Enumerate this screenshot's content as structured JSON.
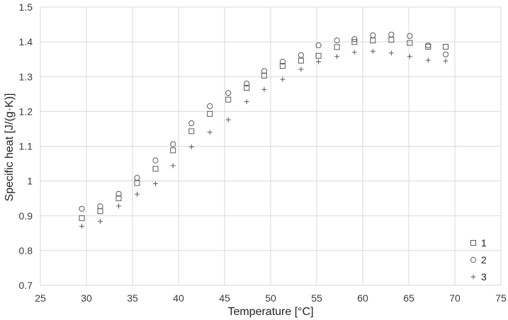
{
  "chart_data": {
    "type": "scatter",
    "title": "",
    "xlabel": "Temperature [°C]",
    "ylabel": "Specific heat [J/(g·K)]",
    "xlim": [
      25,
      75
    ],
    "ylim": [
      0.7,
      1.5
    ],
    "xticks": [
      "25",
      "30",
      "35",
      "40",
      "45",
      "50",
      "55",
      "60",
      "65",
      "70",
      "75"
    ],
    "yticks": [
      "0.7",
      "0.8",
      "0.9",
      "1",
      "1.1",
      "1.2",
      "1.3",
      "1.4",
      "1.5"
    ],
    "grid": true,
    "legend_position": "bottom-right",
    "series": [
      {
        "name": "1",
        "marker": "square",
        "x": [
          29.5,
          31.5,
          33.5,
          35.5,
          37.5,
          39.4,
          41.4,
          43.4,
          45.4,
          47.4,
          49.3,
          51.3,
          53.3,
          55.2,
          57.2,
          59.1,
          61.1,
          63.1,
          65.1,
          67.1,
          69.0
        ],
        "y": [
          0.893,
          0.913,
          0.95,
          0.994,
          1.035,
          1.088,
          1.143,
          1.193,
          1.234,
          1.268,
          1.303,
          1.331,
          1.346,
          1.36,
          1.385,
          1.4,
          1.404,
          1.406,
          1.397,
          1.386,
          1.386
        ]
      },
      {
        "name": "2",
        "marker": "circle",
        "x": [
          29.5,
          31.5,
          33.5,
          35.5,
          37.5,
          39.4,
          41.4,
          43.4,
          45.4,
          47.4,
          49.3,
          51.3,
          53.3,
          55.2,
          57.2,
          59.1,
          61.1,
          63.1,
          65.1,
          67.1,
          69.0
        ],
        "y": [
          0.92,
          0.927,
          0.963,
          1.009,
          1.059,
          1.106,
          1.166,
          1.215,
          1.253,
          1.28,
          1.316,
          1.343,
          1.362,
          1.39,
          1.404,
          1.408,
          1.419,
          1.421,
          1.417,
          1.39,
          1.364
        ]
      },
      {
        "name": "3",
        "marker": "plus",
        "x": [
          29.5,
          31.5,
          33.5,
          35.5,
          37.5,
          39.4,
          41.4,
          43.4,
          45.4,
          47.4,
          49.3,
          51.3,
          53.3,
          55.2,
          57.2,
          59.1,
          61.1,
          63.1,
          65.1,
          67.1,
          69.0
        ],
        "y": [
          0.87,
          0.884,
          0.928,
          0.962,
          0.992,
          1.044,
          1.098,
          1.14,
          1.176,
          1.228,
          1.263,
          1.292,
          1.321,
          1.343,
          1.358,
          1.37,
          1.373,
          1.368,
          1.358,
          1.347,
          1.345
        ]
      }
    ]
  },
  "colors": {
    "marker": "#595959",
    "grid": "#d9d9d9",
    "text": "#3a3a3a"
  }
}
